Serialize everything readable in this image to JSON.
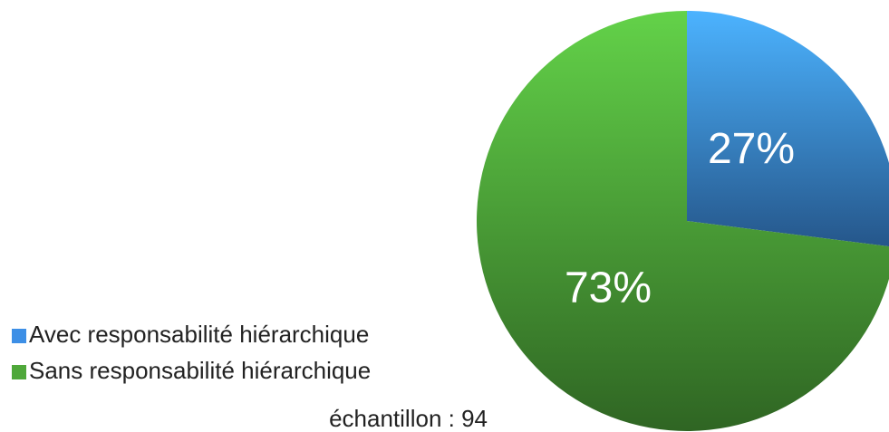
{
  "chart_data": {
    "type": "pie",
    "categories": [
      "Avec responsabilité hiérarchique",
      "Sans responsabilité hiérarchique"
    ],
    "values": [
      27,
      73
    ],
    "value_labels": [
      "27%",
      "73%"
    ],
    "colors": [
      "#3d8fe6",
      "#4fa83a"
    ],
    "annotation": "échantillon : 94",
    "legend": "left"
  }
}
